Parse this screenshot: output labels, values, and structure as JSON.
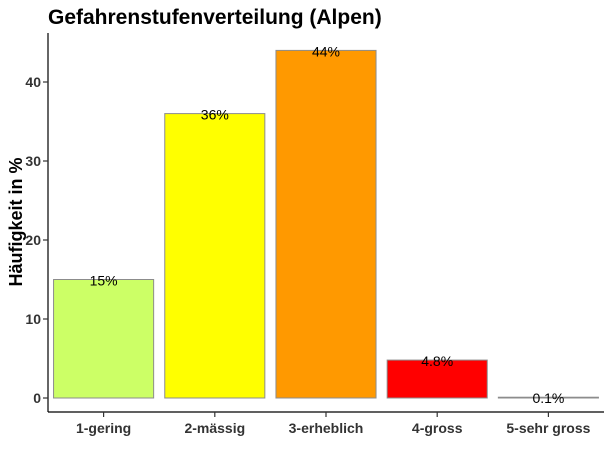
{
  "chart_data": {
    "type": "bar",
    "title": "Gefahrenstufenverteilung (Alpen)",
    "xlabel": "",
    "ylabel": "Häufigkeit in %",
    "categories": [
      "1-gering",
      "2-mässig",
      "3-erheblich",
      "4-gross",
      "5-sehr gross"
    ],
    "values": [
      15,
      36,
      44,
      4.8,
      0.1
    ],
    "data_labels": [
      "15%",
      "36%",
      "44%",
      "4.8%",
      "0.1%"
    ],
    "colors": [
      "#CCFF66",
      "#FFFF00",
      "#FF9900",
      "#FF0000",
      "#A0A0A0"
    ],
    "ylim": [
      0,
      46
    ],
    "yticks": [
      0,
      10,
      20,
      30,
      40
    ],
    "grid": false,
    "legend": "none"
  }
}
